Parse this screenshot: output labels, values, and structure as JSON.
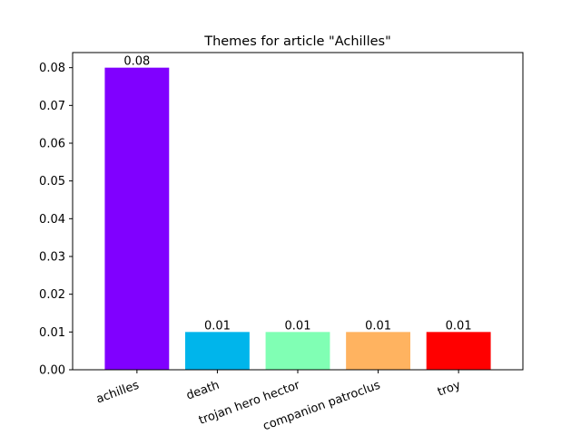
{
  "chart_data": {
    "type": "bar",
    "title": "Themes for article \"Achilles\"",
    "xlabel": "",
    "ylabel": "",
    "categories": [
      "achilles",
      "death",
      "trojan hero hector",
      "companion patroclus",
      "troy"
    ],
    "values": [
      0.08,
      0.01,
      0.01,
      0.01,
      0.01
    ],
    "value_labels": [
      "0.08",
      "0.01",
      "0.01",
      "0.01",
      "0.01"
    ],
    "colors": [
      "#8000ff",
      "#00b5eb",
      "#80ffb4",
      "#ffb360",
      "#ff0000"
    ],
    "ylim": [
      0,
      0.084
    ],
    "yticks": [
      0.0,
      0.01,
      0.02,
      0.03,
      0.04,
      0.05,
      0.06,
      0.07,
      0.08
    ],
    "ytick_labels": [
      "0.00",
      "0.01",
      "0.02",
      "0.03",
      "0.04",
      "0.05",
      "0.06",
      "0.07",
      "0.08"
    ],
    "xtick_rotation_deg": 20,
    "grid": false,
    "legend": "none"
  }
}
